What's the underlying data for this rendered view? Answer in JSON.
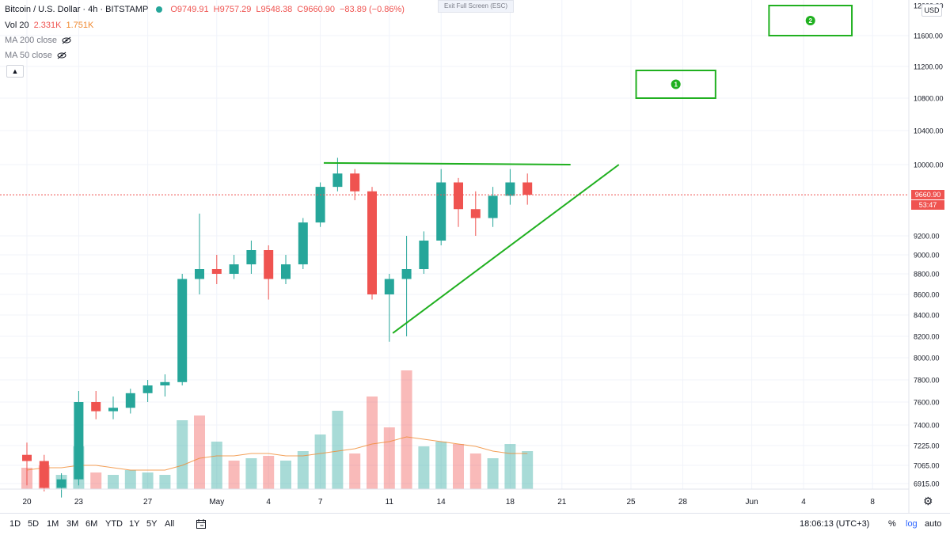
{
  "header": {
    "symbol": "Bitcoin / U.S. Dollar · 4h · BITSTAMP",
    "open": "O9749.91",
    "high": "H9757.29",
    "low": "L9548.38",
    "close": "C9660.90",
    "change": "−83.89 (−0.86%)",
    "vol_label": "Vol 20",
    "vol_value1": "2.331K",
    "vol_value2": "1.751K",
    "ma200_label": "MA 200 close",
    "ma50_label": "MA 50 close"
  },
  "exit_fullscreen": "Exit Full Screen (ESC)",
  "currency": "USD",
  "last_price_label": "9660.90",
  "countdown_label": "53:47",
  "timeframes": [
    "1D",
    "5D",
    "1M",
    "3M",
    "6M",
    "YTD",
    "1Y",
    "5Y",
    "All"
  ],
  "clock": "18:06:13 (UTC+3)",
  "percent_label": "%",
  "log_label": "log",
  "auto_label": "auto",
  "colors": {
    "up": "#26a69a",
    "down": "#ef5350",
    "annotation": "#20b020",
    "last_price_line": "#ef5350"
  },
  "chart_data": {
    "type": "candlestick",
    "title": "Bitcoin / U.S. Dollar · 4h · BITSTAMP",
    "y_axis_ticks": [
      6915,
      7065,
      7225,
      7400,
      7600,
      7800,
      8000,
      8200,
      8400,
      8600,
      8800,
      9000,
      9200,
      10000,
      10400,
      10800,
      11200,
      11600
    ],
    "y_axis_labels": [
      "6915.00",
      "7065.00",
      "7225.00",
      "7400.00",
      "7600.00",
      "7800.00",
      "8000.00",
      "8200.00",
      "8400.00",
      "8600.00",
      "8800.00",
      "9000.00",
      "9200.00",
      "10000.00",
      "10400.00",
      "10800.00",
      "11200.00",
      "11600.00"
    ],
    "y_axis_partial_label": "12000.00",
    "x_axis_ticks": [
      {
        "label": "20",
        "day": 0
      },
      {
        "label": "23",
        "day": 3
      },
      {
        "label": "27",
        "day": 7
      },
      {
        "label": "May",
        "day": 11
      },
      {
        "label": "4",
        "day": 14
      },
      {
        "label": "7",
        "day": 17
      },
      {
        "label": "11",
        "day": 21
      },
      {
        "label": "14",
        "day": 24
      },
      {
        "label": "18",
        "day": 28
      },
      {
        "label": "21",
        "day": 31
      },
      {
        "label": "25",
        "day": 35
      },
      {
        "label": "28",
        "day": 38
      },
      {
        "label": "Jun",
        "day": 42
      },
      {
        "label": "4",
        "day": 45
      },
      {
        "label": "8",
        "day": 49
      }
    ],
    "last_price": 9660.9,
    "daily_candles": [
      {
        "day": 0,
        "o": 7150,
        "h": 7250,
        "l": 6900,
        "c": 7100
      },
      {
        "day": 1,
        "o": 7100,
        "h": 7150,
        "l": 6850,
        "c": 6880
      },
      {
        "day": 2,
        "o": 6880,
        "h": 7000,
        "l": 6800,
        "c": 6950
      },
      {
        "day": 3,
        "o": 6950,
        "h": 7700,
        "l": 6900,
        "c": 7600
      },
      {
        "day": 4,
        "o": 7600,
        "h": 7700,
        "l": 7450,
        "c": 7520
      },
      {
        "day": 5,
        "o": 7520,
        "h": 7650,
        "l": 7450,
        "c": 7550
      },
      {
        "day": 6,
        "o": 7550,
        "h": 7720,
        "l": 7500,
        "c": 7680
      },
      {
        "day": 7,
        "o": 7680,
        "h": 7800,
        "l": 7600,
        "c": 7750
      },
      {
        "day": 8,
        "o": 7750,
        "h": 7850,
        "l": 7650,
        "c": 7780
      },
      {
        "day": 9,
        "o": 7780,
        "h": 8800,
        "l": 7750,
        "c": 8750
      },
      {
        "day": 10,
        "o": 8750,
        "h": 9450,
        "l": 8600,
        "c": 8850
      },
      {
        "day": 11,
        "o": 8850,
        "h": 9000,
        "l": 8700,
        "c": 8800
      },
      {
        "day": 12,
        "o": 8800,
        "h": 9000,
        "l": 8750,
        "c": 8900
      },
      {
        "day": 13,
        "o": 8900,
        "h": 9150,
        "l": 8800,
        "c": 9050
      },
      {
        "day": 14,
        "o": 9050,
        "h": 9100,
        "l": 8550,
        "c": 8750
      },
      {
        "day": 15,
        "o": 8750,
        "h": 9000,
        "l": 8700,
        "c": 8900
      },
      {
        "day": 16,
        "o": 8900,
        "h": 9400,
        "l": 8850,
        "c": 9350
      },
      {
        "day": 17,
        "o": 9350,
        "h": 9800,
        "l": 9300,
        "c": 9750
      },
      {
        "day": 18,
        "o": 9750,
        "h": 10080,
        "l": 9700,
        "c": 9900
      },
      {
        "day": 19,
        "o": 9900,
        "h": 9950,
        "l": 9600,
        "c": 9700
      },
      {
        "day": 20,
        "o": 9700,
        "h": 9750,
        "l": 8550,
        "c": 8600
      },
      {
        "day": 21,
        "o": 8600,
        "h": 8800,
        "l": 8150,
        "c": 8750
      },
      {
        "day": 22,
        "o": 8750,
        "h": 9200,
        "l": 8200,
        "c": 8850
      },
      {
        "day": 23,
        "o": 8850,
        "h": 9250,
        "l": 8800,
        "c": 9150
      },
      {
        "day": 24,
        "o": 9150,
        "h": 9950,
        "l": 9100,
        "c": 9800
      },
      {
        "day": 25,
        "o": 9800,
        "h": 9850,
        "l": 9300,
        "c": 9500
      },
      {
        "day": 26,
        "o": 9500,
        "h": 9700,
        "l": 9200,
        "c": 9400
      },
      {
        "day": 27,
        "o": 9400,
        "h": 9750,
        "l": 9300,
        "c": 9650
      },
      {
        "day": 28,
        "o": 9650,
        "h": 9950,
        "l": 9550,
        "c": 9800
      },
      {
        "day": 29,
        "o": 9800,
        "h": 9900,
        "l": 9550,
        "c": 9660.9
      }
    ],
    "volume_bars": [
      {
        "day": 0,
        "v": 0.9,
        "up": false
      },
      {
        "day": 1,
        "v": 1.0,
        "up": false
      },
      {
        "day": 2,
        "v": 0.6,
        "up": true
      },
      {
        "day": 3,
        "v": 1.8,
        "up": true
      },
      {
        "day": 4,
        "v": 0.7,
        "up": false
      },
      {
        "day": 5,
        "v": 0.6,
        "up": true
      },
      {
        "day": 6,
        "v": 0.8,
        "up": true
      },
      {
        "day": 7,
        "v": 0.7,
        "up": true
      },
      {
        "day": 8,
        "v": 0.6,
        "up": true
      },
      {
        "day": 9,
        "v": 2.9,
        "up": true
      },
      {
        "day": 10,
        "v": 3.1,
        "up": false
      },
      {
        "day": 11,
        "v": 2.0,
        "up": true
      },
      {
        "day": 12,
        "v": 1.2,
        "up": false
      },
      {
        "day": 13,
        "v": 1.3,
        "up": true
      },
      {
        "day": 14,
        "v": 1.4,
        "up": false
      },
      {
        "day": 15,
        "v": 1.2,
        "up": true
      },
      {
        "day": 16,
        "v": 1.6,
        "up": true
      },
      {
        "day": 17,
        "v": 2.3,
        "up": true
      },
      {
        "day": 18,
        "v": 3.3,
        "up": true
      },
      {
        "day": 19,
        "v": 1.5,
        "up": false
      },
      {
        "day": 20,
        "v": 3.9,
        "up": false
      },
      {
        "day": 21,
        "v": 2.6,
        "up": false
      },
      {
        "day": 22,
        "v": 5.0,
        "up": false
      },
      {
        "day": 23,
        "v": 1.8,
        "up": true
      },
      {
        "day": 24,
        "v": 2.0,
        "up": true
      },
      {
        "day": 25,
        "v": 1.9,
        "up": false
      },
      {
        "day": 26,
        "v": 1.5,
        "up": false
      },
      {
        "day": 27,
        "v": 1.3,
        "up": true
      },
      {
        "day": 28,
        "v": 1.9,
        "up": true
      },
      {
        "day": 29,
        "v": 1.6,
        "up": true
      }
    ],
    "volume_ma": [
      0.8,
      0.9,
      0.9,
      1.0,
      1.0,
      0.9,
      0.8,
      0.8,
      0.8,
      1.0,
      1.3,
      1.4,
      1.4,
      1.5,
      1.5,
      1.4,
      1.4,
      1.5,
      1.6,
      1.7,
      1.9,
      2.0,
      2.2,
      2.1,
      2.0,
      1.9,
      1.8,
      1.6,
      1.5,
      1.5
    ],
    "annotations": {
      "resistance_line": {
        "start": {
          "day": 17.2,
          "price": 10020
        },
        "end": {
          "day": 31.5,
          "price": 10000
        }
      },
      "support_line": {
        "start": {
          "day": 21.2,
          "price": 8230
        },
        "end": {
          "day": 34.3,
          "price": 10000
        }
      },
      "target_1": {
        "label": "1",
        "day_start": 35.3,
        "day_end": 39.9,
        "price_top": 11150,
        "price_bottom": 10800
      },
      "target_2": {
        "label": "2",
        "day_start": 43.0,
        "day_end": 47.8,
        "price_top": 12000,
        "price_bottom": 11600
      }
    }
  }
}
